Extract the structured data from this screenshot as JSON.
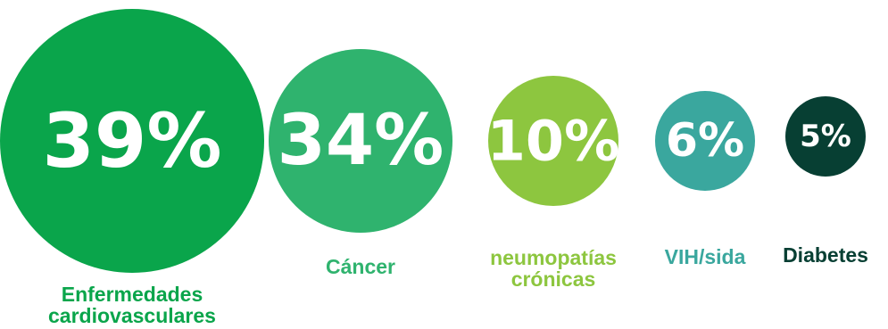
{
  "chart_data": {
    "type": "bubble",
    "categories": [
      [
        "Enfermedades",
        "cardiovasculares"
      ],
      [
        "Cáncer"
      ],
      [
        "neumopatías",
        "crónicas"
      ],
      [
        "VIH/sida"
      ],
      [
        "Diabetes"
      ]
    ],
    "values": [
      39,
      34,
      10,
      6,
      5
    ],
    "value_labels": [
      "39%",
      "34%",
      "10%",
      "6%",
      "5%"
    ],
    "colors": [
      "#0aa54b",
      "#2fb36e",
      "#8dc63f",
      "#3aa79e",
      "#073f33"
    ],
    "label_colors": [
      "#0aa54b",
      "#2fb36e",
      "#8dc63f",
      "#3aa79e",
      "#073f33"
    ]
  }
}
